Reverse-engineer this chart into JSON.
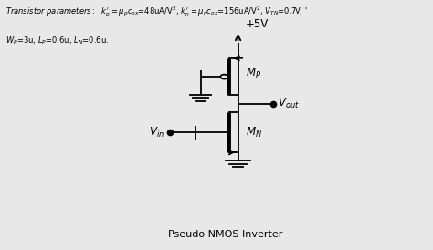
{
  "caption": "Pseudo NMOS Inverter",
  "vdd_label": "+5V",
  "mp_label": "$M_P$",
  "mn_label": "$M_N$",
  "vout_label": "$V_{out}$",
  "vin_label": "$V_{in}$",
  "bg_color": "#e8e8e8",
  "line_color": "black",
  "lw": 1.3,
  "header_line1": "Transistor parameters:  $k_p'=\\mu_p c_{ox}$=48uA/V$^2$,  $k_n'=\\mu_n c_{ox}$=156uA/V$^2$,  $V_{TN}$=0.7V,  '",
  "header_line2": "$W_P$=3u, $L_P$=0.6u, $L_N$=0.6u."
}
